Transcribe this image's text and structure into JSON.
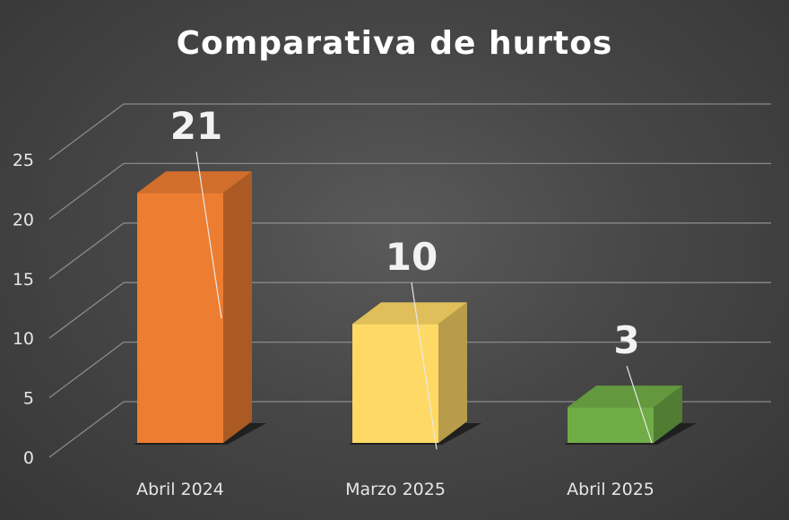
{
  "chart_data": {
    "type": "bar",
    "title": "Comparativa de hurtos",
    "categories": [
      "Abril 2024",
      "Marzo 2025",
      "Abril 2025"
    ],
    "values": [
      21,
      10,
      3
    ],
    "ylim": [
      0,
      25
    ],
    "yticks": [
      0,
      5,
      10,
      15,
      20,
      25
    ],
    "grid": true,
    "style": "3d-column",
    "data_labels": [
      "21",
      "10",
      "3"
    ],
    "colors": [
      "#ED7D31",
      "#FFD966",
      "#70AD47"
    ],
    "background": "#454545"
  }
}
